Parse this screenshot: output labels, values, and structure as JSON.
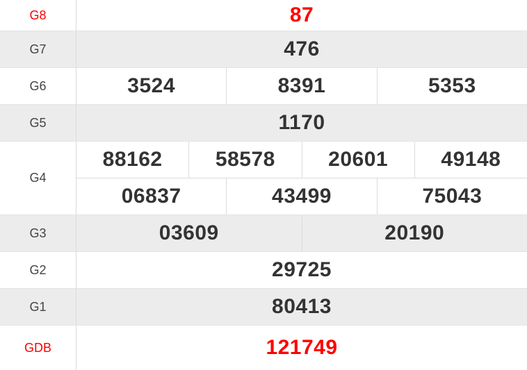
{
  "table": {
    "title": "lottery-results",
    "accent_red": "#ff0000",
    "row_gray_bg": "#ececec",
    "border_color": "#dcdcdc",
    "rows": [
      {
        "label": "G8",
        "highlight": true,
        "numbers": [
          "87"
        ]
      },
      {
        "label": "G7",
        "highlight": false,
        "numbers": [
          "476"
        ]
      },
      {
        "label": "G6",
        "highlight": false,
        "numbers": [
          "3524",
          "8391",
          "5353"
        ]
      },
      {
        "label": "G5",
        "highlight": false,
        "numbers": [
          "1170"
        ]
      },
      {
        "label": "G4",
        "highlight": false,
        "rows": [
          [
            "88162",
            "58578",
            "20601",
            "49148"
          ],
          [
            "06837",
            "43499",
            "75043"
          ]
        ]
      },
      {
        "label": "G3",
        "highlight": false,
        "numbers": [
          "03609",
          "20190"
        ]
      },
      {
        "label": "G2",
        "highlight": false,
        "numbers": [
          "29725"
        ]
      },
      {
        "label": "G1",
        "highlight": false,
        "numbers": [
          "80413"
        ]
      },
      {
        "label": "GDB",
        "highlight": true,
        "numbers": [
          "121749"
        ]
      }
    ]
  }
}
